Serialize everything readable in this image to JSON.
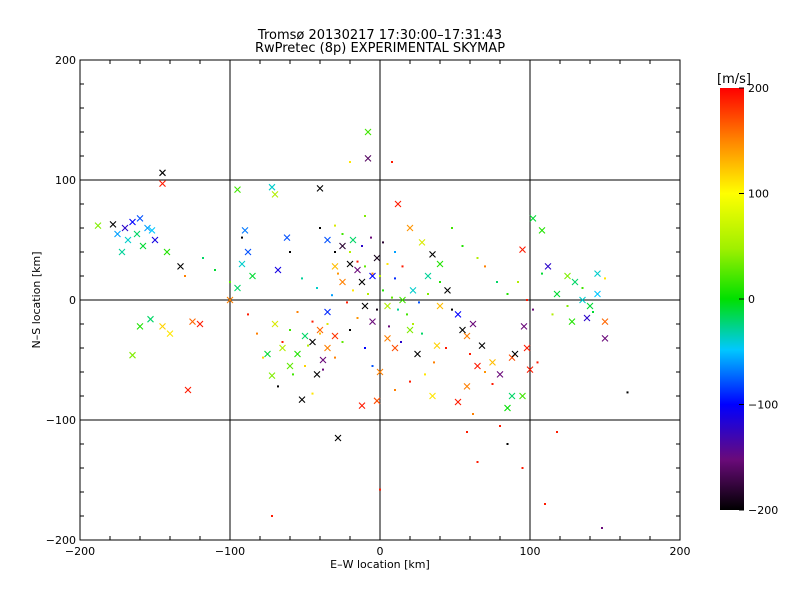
{
  "chart_data": {
    "type": "scatter",
    "title": "Tromsø 20130217 17:30:00–17:31:43",
    "subtitle": "RwPretec (8p) EXPERIMENTAL SKYMAP",
    "xlabel": "E–W location [km]",
    "ylabel": "N–S location [km]",
    "xlim": [
      -200,
      200
    ],
    "ylim": [
      -200,
      200
    ],
    "xticks": [
      "−200",
      "−100",
      "0",
      "100",
      "200"
    ],
    "yticks": [
      "−200",
      "−100",
      "0",
      "100",
      "200"
    ],
    "grid": true,
    "colorbar": {
      "unit": "[m/s]",
      "range": [
        -200,
        200
      ],
      "ticks": [
        "200",
        "100",
        "0",
        "−100",
        "−200"
      ],
      "colormap": "black-purple-blue-cyan-green-yellow-orange-red"
    },
    "series": [
      {
        "marker": "cross",
        "points": [
          [
            -145,
            106,
            -200
          ],
          [
            -145,
            97,
            190
          ],
          [
            -178,
            63,
            -200
          ],
          [
            -170,
            60,
            -120
          ],
          [
            -165,
            65,
            -100
          ],
          [
            -160,
            68,
            -80
          ],
          [
            -155,
            60,
            -60
          ],
          [
            -150,
            50,
            -110
          ],
          [
            -162,
            55,
            -20
          ],
          [
            -168,
            50,
            -40
          ],
          [
            -172,
            40,
            -30
          ],
          [
            -158,
            45,
            -10
          ],
          [
            -152,
            58,
            -50
          ],
          [
            -175,
            55,
            -60
          ],
          [
            -188,
            62,
            40
          ],
          [
            -142,
            40,
            10
          ],
          [
            -133,
            28,
            -200
          ],
          [
            -153,
            -16,
            -20
          ],
          [
            -145,
            -22,
            110
          ],
          [
            -140,
            -28,
            100
          ],
          [
            -125,
            -18,
            160
          ],
          [
            -120,
            -20,
            190
          ],
          [
            -165,
            -46,
            40
          ],
          [
            -160,
            -22,
            10
          ],
          [
            -128,
            -75,
            190
          ],
          [
            -95,
            92,
            20
          ],
          [
            -72,
            94,
            -40
          ],
          [
            -70,
            88,
            60
          ],
          [
            -90,
            58,
            -70
          ],
          [
            -88,
            40,
            -80
          ],
          [
            -92,
            30,
            -40
          ],
          [
            -85,
            20,
            -10
          ],
          [
            -95,
            10,
            -20
          ],
          [
            -100,
            0,
            150
          ],
          [
            -62,
            52,
            -80
          ],
          [
            -68,
            25,
            -110
          ],
          [
            -40,
            93,
            -200
          ],
          [
            -8,
            140,
            20
          ],
          [
            -8,
            118,
            -160
          ],
          [
            -35,
            50,
            -80
          ],
          [
            -25,
            45,
            -180
          ],
          [
            -20,
            30,
            -200
          ],
          [
            -15,
            25,
            -150
          ],
          [
            -12,
            15,
            -200
          ],
          [
            -5,
            20,
            -100
          ],
          [
            -2,
            35,
            -190
          ],
          [
            -10,
            -5,
            -200
          ],
          [
            -5,
            -18,
            -150
          ],
          [
            -30,
            -30,
            180
          ],
          [
            -35,
            -40,
            150
          ],
          [
            -40,
            -25,
            160
          ],
          [
            -45,
            -35,
            -200
          ],
          [
            -38,
            -50,
            -150
          ],
          [
            -42,
            -62,
            -200
          ],
          [
            -52,
            -83,
            -200
          ],
          [
            -72,
            -63,
            40
          ],
          [
            -28,
            -115,
            -200
          ],
          [
            -12,
            -88,
            190
          ],
          [
            -2,
            -84,
            170
          ],
          [
            0,
            -60,
            150
          ],
          [
            5,
            -32,
            150
          ],
          [
            10,
            -40,
            170
          ],
          [
            20,
            -25,
            40
          ],
          [
            25,
            -45,
            -200
          ],
          [
            35,
            38,
            -200
          ],
          [
            40,
            30,
            10
          ],
          [
            45,
            8,
            -200
          ],
          [
            40,
            -5,
            120
          ],
          [
            52,
            -12,
            -100
          ],
          [
            55,
            -25,
            -200
          ],
          [
            58,
            -30,
            150
          ],
          [
            62,
            -20,
            -150
          ],
          [
            68,
            -38,
            -200
          ],
          [
            65,
            -55,
            190
          ],
          [
            75,
            -52,
            120
          ],
          [
            80,
            -62,
            -150
          ],
          [
            88,
            -48,
            170
          ],
          [
            90,
            -45,
            -200
          ],
          [
            96,
            -22,
            -150
          ],
          [
            98,
            -40,
            190
          ],
          [
            100,
            -58,
            190
          ],
          [
            85,
            -90,
            0
          ],
          [
            88,
            -80,
            -20
          ],
          [
            95,
            -80,
            20
          ],
          [
            35,
            -80,
            100
          ],
          [
            52,
            -85,
            190
          ],
          [
            58,
            -72,
            150
          ],
          [
            95,
            42,
            190
          ],
          [
            102,
            68,
            -10
          ],
          [
            108,
            58,
            10
          ],
          [
            118,
            5,
            -10
          ],
          [
            125,
            20,
            40
          ],
          [
            130,
            15,
            -20
          ],
          [
            135,
            0,
            -40
          ],
          [
            140,
            -5,
            -10
          ],
          [
            145,
            5,
            -50
          ],
          [
            150,
            -18,
            160
          ],
          [
            150,
            -32,
            -150
          ],
          [
            128,
            -18,
            10
          ],
          [
            138,
            -15,
            -120
          ],
          [
            145,
            22,
            -40
          ],
          [
            112,
            28,
            -120
          ],
          [
            12,
            80,
            190
          ],
          [
            20,
            60,
            140
          ],
          [
            28,
            48,
            80
          ],
          [
            32,
            20,
            -30
          ],
          [
            38,
            -38,
            110
          ],
          [
            22,
            8,
            -40
          ],
          [
            15,
            0,
            20
          ],
          [
            5,
            -5,
            60
          ],
          [
            -18,
            50,
            -20
          ],
          [
            -25,
            15,
            150
          ],
          [
            -30,
            28,
            120
          ],
          [
            -50,
            -30,
            -20
          ],
          [
            -55,
            -45,
            10
          ],
          [
            -60,
            -55,
            30
          ],
          [
            -65,
            -40,
            60
          ],
          [
            -70,
            -20,
            80
          ],
          [
            -75,
            -45,
            -10
          ],
          [
            -35,
            -10,
            -90
          ]
        ]
      },
      {
        "marker": "dot",
        "points": [
          [
            -92,
            52,
            -200
          ],
          [
            -60,
            40,
            -200
          ],
          [
            -40,
            60,
            -200
          ],
          [
            -30,
            40,
            -200
          ],
          [
            -25,
            55,
            20
          ],
          [
            -20,
            40,
            60
          ],
          [
            -15,
            32,
            190
          ],
          [
            -10,
            28,
            30
          ],
          [
            -5,
            22,
            150
          ],
          [
            0,
            20,
            60
          ],
          [
            5,
            30,
            100
          ],
          [
            10,
            40,
            -60
          ],
          [
            15,
            28,
            190
          ],
          [
            -28,
            22,
            140
          ],
          [
            -18,
            8,
            100
          ],
          [
            -8,
            5,
            60
          ],
          [
            2,
            8,
            10
          ],
          [
            8,
            2,
            30
          ],
          [
            12,
            -8,
            -30
          ],
          [
            18,
            -12,
            20
          ],
          [
            22,
            -20,
            60
          ],
          [
            28,
            -28,
            -20
          ],
          [
            -45,
            -18,
            190
          ],
          [
            -40,
            -28,
            120
          ],
          [
            -35,
            -20,
            80
          ],
          [
            -48,
            -38,
            60
          ],
          [
            -30,
            -48,
            150
          ],
          [
            -25,
            -35,
            30
          ],
          [
            -20,
            -25,
            -200
          ],
          [
            -15,
            -15,
            140
          ],
          [
            -60,
            -25,
            20
          ],
          [
            -55,
            -10,
            150
          ],
          [
            -65,
            -35,
            190
          ],
          [
            -38,
            -58,
            -150
          ],
          [
            -50,
            -55,
            110
          ],
          [
            60,
            -45,
            190
          ],
          [
            70,
            -60,
            140
          ],
          [
            75,
            -70,
            190
          ],
          [
            80,
            -105,
            190
          ],
          [
            85,
            -120,
            -200
          ],
          [
            65,
            -135,
            190
          ],
          [
            58,
            -110,
            190
          ],
          [
            62,
            -95,
            150
          ],
          [
            95,
            -140,
            190
          ],
          [
            110,
            -170,
            190
          ],
          [
            118,
            -110,
            190
          ],
          [
            148,
            -190,
            -150
          ],
          [
            105,
            -52,
            190
          ],
          [
            0,
            -158,
            190
          ],
          [
            -72,
            -180,
            190
          ],
          [
            165,
            -77,
            -200
          ],
          [
            -20,
            115,
            100
          ],
          [
            8,
            115,
            190
          ],
          [
            -10,
            70,
            40
          ],
          [
            -30,
            62,
            80
          ],
          [
            48,
            60,
            20
          ],
          [
            55,
            45,
            10
          ],
          [
            65,
            35,
            60
          ],
          [
            70,
            28,
            150
          ],
          [
            78,
            15,
            -20
          ],
          [
            85,
            5,
            10
          ],
          [
            92,
            15,
            60
          ],
          [
            98,
            0,
            190
          ],
          [
            102,
            -8,
            -150
          ],
          [
            108,
            22,
            -10
          ],
          [
            115,
            -12,
            60
          ],
          [
            125,
            -5,
            40
          ],
          [
            135,
            10,
            20
          ],
          [
            142,
            -10,
            -10
          ],
          [
            150,
            18,
            100
          ],
          [
            -130,
            20,
            150
          ],
          [
            -118,
            35,
            -20
          ],
          [
            -110,
            25,
            -10
          ],
          [
            -100,
            15,
            30
          ],
          [
            -88,
            -12,
            190
          ],
          [
            -82,
            -28,
            150
          ],
          [
            -78,
            -48,
            110
          ],
          [
            -68,
            -72,
            -200
          ],
          [
            -58,
            -62,
            20
          ],
          [
            -45,
            -78,
            100
          ],
          [
            32,
            5,
            40
          ],
          [
            40,
            15,
            10
          ],
          [
            48,
            -8,
            -200
          ],
          [
            44,
            -40,
            190
          ],
          [
            36,
            -52,
            150
          ],
          [
            30,
            -62,
            100
          ],
          [
            20,
            -68,
            190
          ],
          [
            10,
            -75,
            150
          ],
          [
            -5,
            -55,
            -80
          ],
          [
            -10,
            -40,
            -100
          ],
          [
            -22,
            -2,
            190
          ],
          [
            -2,
            -8,
            -190
          ],
          [
            6,
            -22,
            -150
          ],
          [
            14,
            -35,
            -120
          ],
          [
            26,
            -2,
            -80
          ],
          [
            -32,
            4,
            -60
          ],
          [
            -42,
            10,
            -40
          ],
          [
            -52,
            18,
            -30
          ],
          [
            -12,
            45,
            -120
          ],
          [
            -6,
            52,
            -150
          ],
          [
            2,
            48,
            -180
          ],
          [
            10,
            18,
            -90
          ]
        ]
      }
    ]
  }
}
